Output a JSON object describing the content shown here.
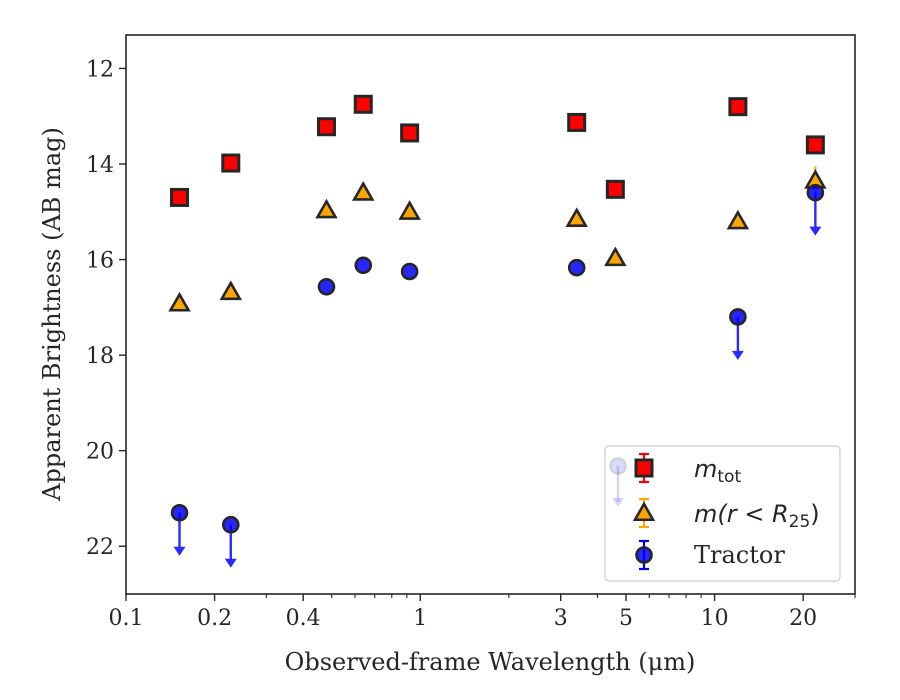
{
  "chart_data": {
    "type": "scatter",
    "title": "",
    "xlabel": "Observed-frame Wavelength (μm)",
    "ylabel": "Apparent Brightness (AB mag)",
    "xscale": "log",
    "xlim": [
      0.1,
      30
    ],
    "ylim": [
      23,
      11.3
    ],
    "y_inverted": true,
    "x_ticks": [
      {
        "value": 0.1,
        "label": "0.1"
      },
      {
        "value": 0.2,
        "label": "0.2"
      },
      {
        "value": 0.4,
        "label": "0.4"
      },
      {
        "value": 1,
        "label": "1"
      },
      {
        "value": 3,
        "label": "3"
      },
      {
        "value": 5,
        "label": "5"
      },
      {
        "value": 10,
        "label": "10"
      },
      {
        "value": 20,
        "label": "20"
      }
    ],
    "y_ticks": [
      {
        "value": 12,
        "label": "12"
      },
      {
        "value": 14,
        "label": "14"
      },
      {
        "value": 16,
        "label": "16"
      },
      {
        "value": 18,
        "label": "18"
      },
      {
        "value": 20,
        "label": "20"
      },
      {
        "value": 22,
        "label": "22"
      }
    ],
    "grid": false,
    "legend_position": "lower-right",
    "series": [
      {
        "key": "mtot",
        "marker": "square",
        "color": "#ff0000",
        "edgecolor": "#262626",
        "legend_main": "m",
        "legend_sub": "tot",
        "points": [
          {
            "x": 0.152,
            "y": 14.7
          },
          {
            "x": 0.227,
            "y": 13.98
          },
          {
            "x": 0.48,
            "y": 13.22
          },
          {
            "x": 0.64,
            "y": 12.75
          },
          {
            "x": 0.92,
            "y": 13.35
          },
          {
            "x": 3.4,
            "y": 13.13
          },
          {
            "x": 4.6,
            "y": 14.53
          },
          {
            "x": 12.0,
            "y": 12.8
          },
          {
            "x": 22.0,
            "y": 13.6
          }
        ]
      },
      {
        "key": "mr25",
        "marker": "triangle",
        "color": "#ffa500",
        "edgecolor": "#262626",
        "legend_main": "m(r < R",
        "legend_sub": "25",
        "legend_close": ")",
        "points": [
          {
            "x": 0.152,
            "y": 16.92
          },
          {
            "x": 0.227,
            "y": 16.68
          },
          {
            "x": 0.48,
            "y": 14.97
          },
          {
            "x": 0.64,
            "y": 14.6
          },
          {
            "x": 0.92,
            "y": 15.0
          },
          {
            "x": 3.4,
            "y": 15.15
          },
          {
            "x": 4.6,
            "y": 15.97
          },
          {
            "x": 12.0,
            "y": 15.2
          },
          {
            "x": 22.0,
            "y": 14.35,
            "yerr": 0.3
          }
        ]
      },
      {
        "key": "tractor",
        "marker": "circle",
        "color": "#0000ff",
        "edgecolor": "#262626",
        "legend_main": "Tractor",
        "points": [
          {
            "x": 0.152,
            "y": 21.3,
            "upper_limit": true
          },
          {
            "x": 0.227,
            "y": 21.55,
            "upper_limit": true
          },
          {
            "x": 0.48,
            "y": 16.57
          },
          {
            "x": 0.64,
            "y": 16.12
          },
          {
            "x": 0.92,
            "y": 16.25
          },
          {
            "x": 3.4,
            "y": 16.17
          },
          {
            "x": 12.0,
            "y": 17.2,
            "upper_limit": true
          },
          {
            "x": 22.0,
            "y": 14.6,
            "upper_limit": true
          }
        ]
      }
    ]
  }
}
